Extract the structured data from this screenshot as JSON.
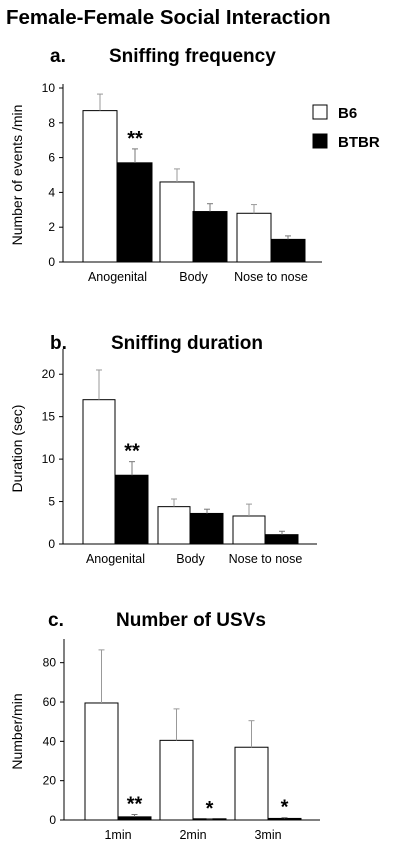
{
  "figure_title": "Female-Female Social Interaction",
  "legend": [
    {
      "label": "B6",
      "color": "#ffffff"
    },
    {
      "label": "BTBR",
      "color": "#000000"
    }
  ],
  "chart_data": [
    {
      "type": "bar",
      "panel": "a.",
      "title": "Sniffing frequency",
      "ylabel": "Number of events /min",
      "categories": [
        "Anogenital",
        "Body",
        "Nose to nose"
      ],
      "ylim": [
        0,
        10
      ],
      "yticks": [
        "0",
        "2",
        "4",
        "6",
        "8",
        "10"
      ],
      "series": [
        {
          "name": "B6",
          "values": [
            8.7,
            4.6,
            2.8
          ],
          "errors": [
            0.95,
            0.75,
            0.5
          ]
        },
        {
          "name": "BTBR",
          "values": [
            5.7,
            2.9,
            1.3
          ],
          "errors": [
            0.8,
            0.45,
            0.2
          ]
        }
      ],
      "annotations": [
        {
          "category": "Anogenital",
          "series": "BTBR",
          "text": "**"
        }
      ]
    },
    {
      "type": "bar",
      "panel": "b.",
      "title": "Sniffing duration",
      "ylabel": "Duration (sec)",
      "categories": [
        "Anogenital",
        "Body",
        "Nose to nose"
      ],
      "ylim": [
        0,
        22.5
      ],
      "yticks": [
        "0",
        "5",
        "10",
        "15",
        "20"
      ],
      "series": [
        {
          "name": "B6",
          "values": [
            17.0,
            4.4,
            3.3
          ],
          "errors": [
            3.5,
            0.9,
            1.4
          ]
        },
        {
          "name": "BTBR",
          "values": [
            8.1,
            3.6,
            1.1
          ],
          "errors": [
            1.6,
            0.5,
            0.4
          ]
        }
      ],
      "annotations": [
        {
          "category": "Anogenital",
          "series": "BTBR",
          "text": "**"
        }
      ]
    },
    {
      "type": "bar",
      "panel": "c.",
      "title": "Number of USVs",
      "ylabel": "Number/min",
      "categories": [
        "1min",
        "2min",
        "3min"
      ],
      "ylim": [
        0,
        90
      ],
      "yticks": [
        "0",
        "20",
        "40",
        "60",
        "80"
      ],
      "series": [
        {
          "name": "B6",
          "values": [
            59.5,
            40.5,
            37.0
          ],
          "errors": [
            27.0,
            16.0,
            13.5
          ]
        },
        {
          "name": "BTBR",
          "values": [
            1.6,
            0.4,
            0.8
          ],
          "errors": [
            1.2,
            0.2,
            0.4
          ]
        }
      ],
      "annotations": [
        {
          "category": "1min",
          "series": "BTBR",
          "text": "**"
        },
        {
          "category": "2min",
          "series": "BTBR",
          "text": "*"
        },
        {
          "category": "3min",
          "series": "BTBR",
          "text": "*"
        }
      ]
    }
  ]
}
